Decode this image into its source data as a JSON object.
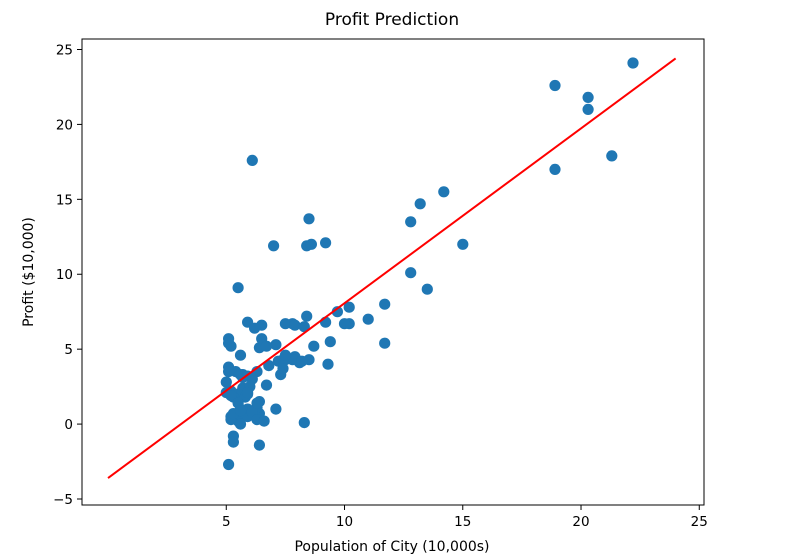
{
  "chart_data": {
    "type": "scatter",
    "title": "Profit Prediction",
    "xlabel": "Population of City (10,000s)",
    "ylabel": "Profit ($10,000)",
    "xlim": [
      -1.1,
      25.2
    ],
    "ylim": [
      -5.4,
      25.7
    ],
    "x_ticks": [
      5,
      10,
      15,
      20,
      25
    ],
    "y_ticks": [
      -5,
      0,
      5,
      10,
      15,
      20,
      25
    ],
    "grid": false,
    "point_color": "#1f77b4",
    "line_color": "#ff0000",
    "points": [
      [
        6.1,
        17.6
      ],
      [
        5.5,
        9.1
      ],
      [
        8.5,
        13.7
      ],
      [
        7.0,
        11.9
      ],
      [
        5.9,
        6.8
      ],
      [
        8.4,
        11.9
      ],
      [
        7.5,
        4.3
      ],
      [
        8.6,
        12.0
      ],
      [
        6.5,
        6.6
      ],
      [
        5.1,
        3.8
      ],
      [
        5.7,
        3.3
      ],
      [
        14.2,
        15.5
      ],
      [
        5.7,
        3.1
      ],
      [
        8.4,
        7.2
      ],
      [
        6.4,
        0.7
      ],
      [
        5.4,
        3.5
      ],
      [
        5.1,
        5.4
      ],
      [
        5.0,
        2.1
      ],
      [
        6.2,
        6.4
      ],
      [
        7.8,
        6.7
      ],
      [
        7.1,
        1.0
      ],
      [
        5.6,
        4.6
      ],
      [
        6.3,
        3.5
      ],
      [
        5.6,
        1.0
      ],
      [
        6.8,
        3.9
      ],
      [
        7.2,
        4.2
      ],
      [
        13.5,
        9.0
      ],
      [
        5.2,
        0.5
      ],
      [
        6.7,
        2.6
      ],
      [
        5.9,
        2.0
      ],
      [
        7.5,
        6.7
      ],
      [
        12.8,
        13.5
      ],
      [
        9.7,
        7.5
      ],
      [
        6.4,
        5.1
      ],
      [
        8.1,
        4.1
      ],
      [
        12.8,
        10.1
      ],
      [
        9.4,
        5.5
      ],
      [
        5.1,
        3.5
      ],
      [
        9.3,
        4.0
      ],
      [
        5.7,
        2.4
      ],
      [
        6.3,
        1.1
      ],
      [
        8.3,
        0.1
      ],
      [
        5.5,
        2.0
      ],
      [
        7.9,
        4.5
      ],
      [
        6.4,
        1.5
      ],
      [
        5.3,
        -0.8
      ],
      [
        5.1,
        -2.7
      ],
      [
        5.5,
        0.2
      ],
      [
        7.8,
        4.3
      ],
      [
        6.1,
        3.0
      ],
      [
        11.7,
        8.0
      ],
      [
        10.2,
        6.7
      ],
      [
        8.7,
        5.2
      ],
      [
        9.2,
        12.1
      ],
      [
        7.9,
        6.6
      ],
      [
        6.0,
        2.5
      ],
      [
        7.1,
        5.3
      ],
      [
        13.2,
        14.7
      ],
      [
        10.0,
        6.7
      ],
      [
        5.0,
        2.8
      ],
      [
        5.2,
        0.3
      ],
      [
        5.6,
        0.6
      ],
      [
        5.6,
        3.3
      ],
      [
        5.3,
        1.8
      ],
      [
        5.2,
        2.2
      ],
      [
        5.9,
        1.0
      ],
      [
        5.9,
        0.5
      ],
      [
        6.1,
        0.8
      ],
      [
        5.2,
        5.2
      ],
      [
        7.3,
        3.3
      ],
      [
        5.3,
        -1.2
      ],
      [
        6.3,
        0.3
      ],
      [
        6.6,
        0.2
      ],
      [
        5.6,
        0.0
      ],
      [
        6.5,
        5.7
      ],
      [
        5.9,
        3.2
      ],
      [
        5.8,
        1.8
      ],
      [
        5.3,
        0.7
      ],
      [
        7.4,
        4.3
      ],
      [
        6.4,
        -1.4
      ],
      [
        6.3,
        1.4
      ],
      [
        5.9,
        2.1
      ],
      [
        5.2,
        1.9
      ],
      [
        8.5,
        4.3
      ],
      [
        7.4,
        3.7
      ],
      [
        6.7,
        5.2
      ],
      [
        9.2,
        6.8
      ],
      [
        10.2,
        7.8
      ],
      [
        11.7,
        5.4
      ],
      [
        11.0,
        7.0
      ],
      [
        5.1,
        5.7
      ],
      [
        8.3,
        6.5
      ],
      [
        5.5,
        1.4
      ],
      [
        5.6,
        0.9
      ],
      [
        7.5,
        4.6
      ],
      [
        8.2,
        4.2
      ],
      [
        18.9,
        22.6
      ],
      [
        20.3,
        21.8
      ],
      [
        20.3,
        21.0
      ],
      [
        22.2,
        24.1
      ],
      [
        18.9,
        17.0
      ],
      [
        21.3,
        17.9
      ],
      [
        15.0,
        12.0
      ]
    ],
    "fit_line": {
      "x": [
        0.0,
        24.0
      ],
      "y": [
        -3.6,
        24.4
      ]
    }
  }
}
